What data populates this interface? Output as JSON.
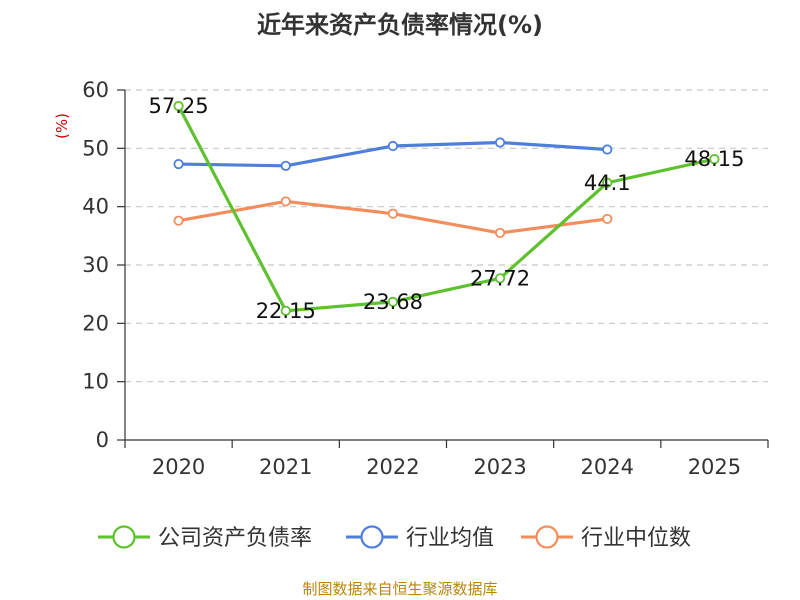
{
  "chart_data": {
    "type": "line",
    "title": "近年来资产负债率情况(%)",
    "unit_label": "(%)",
    "categories": [
      "2020",
      "2021",
      "2022",
      "2023",
      "2024",
      "2025"
    ],
    "ylim": [
      0,
      60
    ],
    "yticks": [
      0,
      10,
      20,
      30,
      40,
      50,
      60
    ],
    "grid": true,
    "legend_position": "bottom",
    "series": [
      {
        "name": "公司资产负债率",
        "color": "#5ec12e",
        "values": [
          57.25,
          22.15,
          23.68,
          27.72,
          44.1,
          48.15
        ],
        "labels": [
          "57.25",
          "22.15",
          "23.68",
          "27.72",
          "44.1",
          "48.15"
        ]
      },
      {
        "name": "行业均值",
        "color": "#4e7fdb",
        "values": [
          47.3,
          47.0,
          50.4,
          51.0,
          49.8,
          null
        ]
      },
      {
        "name": "行业中位数",
        "color": "#f28e5b",
        "values": [
          37.6,
          40.9,
          38.8,
          35.5,
          37.9,
          null
        ]
      }
    ],
    "source": "制图数据来自恒生聚源数据库"
  }
}
